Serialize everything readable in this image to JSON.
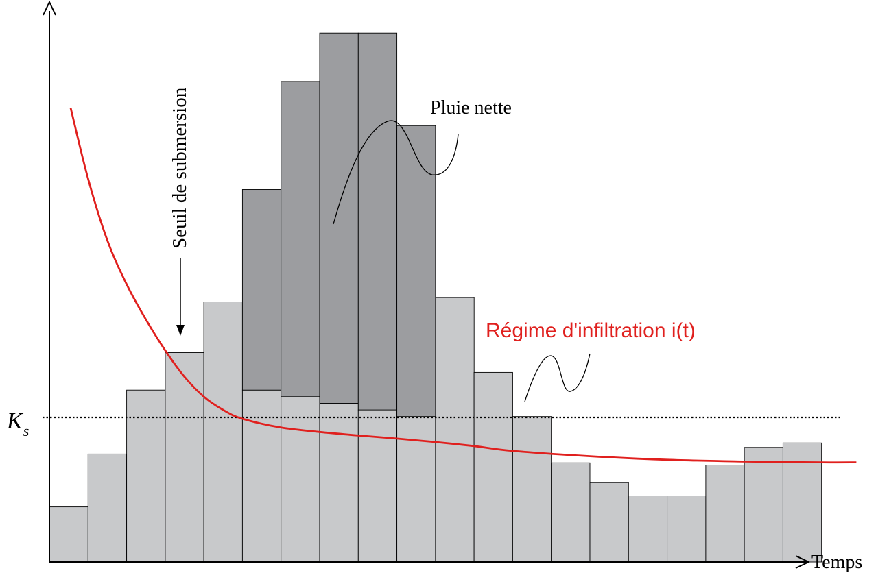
{
  "labels": {
    "x_axis": "Temps",
    "threshold_arrow": "Seuil de submersion",
    "net_rain": "Pluie nette",
    "infiltration": "Régime d'infiltration i(t)",
    "ks_main": "K",
    "ks_sub": "s"
  },
  "colors": {
    "rain_bar": "#c8c9cb",
    "net_rain": "#9c9da0",
    "infiltration_curve": "#e0201e",
    "ink": "#000000"
  },
  "chart_data": {
    "type": "bar",
    "x_unit": "time step",
    "rain": [
      1.25,
      2.45,
      3.9,
      4.75,
      5.9,
      8.45,
      10.9,
      12.0,
      12.0,
      9.9,
      6.0,
      4.3,
      3.3,
      2.25,
      1.8,
      1.5,
      1.5,
      2.2,
      2.6,
      2.7
    ],
    "infiltration_at_step_end": [
      null,
      null,
      null,
      null,
      null,
      3.9,
      3.75,
      3.6,
      3.45,
      3.3
    ],
    "ks": 2.77,
    "ylim": [
      0,
      12.5
    ],
    "xlim": [
      0,
      21
    ],
    "infiltration_curve": {
      "t": [
        0.55,
        1.0,
        1.5,
        2.0,
        2.5,
        3.0,
        3.5,
        4.0,
        4.5,
        5.0,
        6.0,
        7.0,
        8.0,
        9.0,
        10.0,
        11.0,
        12.0,
        14.0,
        16.0,
        18.0,
        20.0,
        20.9
      ],
      "i": [
        10.3,
        8.7,
        7.3,
        6.3,
        5.5,
        4.8,
        4.2,
        3.75,
        3.45,
        3.25,
        3.05,
        2.95,
        2.87,
        2.8,
        2.72,
        2.63,
        2.52,
        2.4,
        2.32,
        2.28,
        2.26,
        2.26
      ]
    },
    "ponding_time": 3.5
  }
}
